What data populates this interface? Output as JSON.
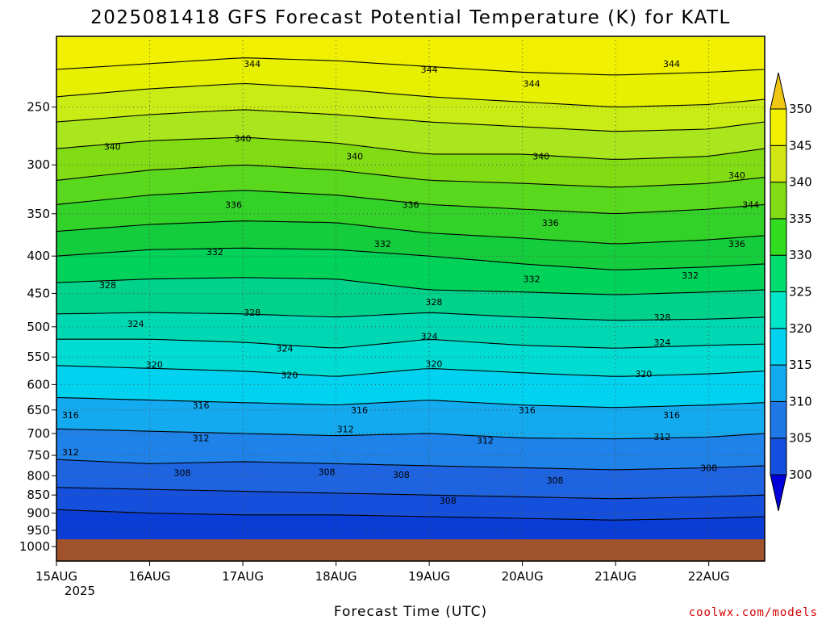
{
  "chart_data": {
    "type": "heatmap",
    "title": "2025081418 GFS Forecast Potential Temperature (K) for KATL",
    "xlabel": "Forecast Time (UTC)",
    "ylabel": "",
    "credit": "coolwx.com/models",
    "x_ticks": [
      "15AUG",
      "16AUG",
      "17AUG",
      "18AUG",
      "19AUG",
      "20AUG",
      "21AUG",
      "22AUG"
    ],
    "x_tick_sublabel": "2025",
    "x_range": [
      0,
      7.6
    ],
    "y_ticks": [
      250,
      300,
      350,
      400,
      450,
      500,
      550,
      600,
      650,
      700,
      750,
      800,
      850,
      900,
      950,
      1000
    ],
    "y_range": [
      200,
      1000
    ],
    "y_scale": "log",
    "y_inverted": true,
    "grid": "dotted",
    "colorbar": {
      "levels": [
        300,
        305,
        310,
        315,
        320,
        325,
        330,
        335,
        340,
        345,
        350
      ],
      "colors": [
        "#0000d8",
        "#1450e0",
        "#1e78e6",
        "#14aaf0",
        "#00d2f0",
        "#00e6c8",
        "#00dc6e",
        "#32dc1e",
        "#82dc14",
        "#d2e614",
        "#f0f000",
        "#f0c814"
      ],
      "placement": "right"
    },
    "series": [
      {
        "values": [
          [
            0.0,
            222
          ],
          [
            1.0,
            218
          ],
          [
            2.0,
            214
          ],
          [
            3.0,
            216
          ],
          [
            4.0,
            220
          ],
          [
            5.0,
            224
          ],
          [
            6.0,
            226
          ],
          [
            7.0,
            224
          ],
          [
            7.6,
            222
          ]
        ]
      },
      {
        "values": [
          [
            0.0,
            242
          ],
          [
            1.0,
            236
          ],
          [
            2.0,
            232
          ],
          [
            3.0,
            236
          ],
          [
            4.0,
            242
          ],
          [
            5.0,
            246
          ],
          [
            6.0,
            250
          ],
          [
            7.0,
            248
          ],
          [
            7.6,
            244
          ]
        ]
      },
      {
        "values": [
          [
            0.0,
            262
          ],
          [
            1.0,
            256
          ],
          [
            2.0,
            252
          ],
          [
            3.0,
            256
          ],
          [
            4.0,
            262
          ],
          [
            5.0,
            266
          ],
          [
            6.0,
            270
          ],
          [
            7.0,
            268
          ],
          [
            7.6,
            262
          ]
        ]
      },
      {
        "values": [
          [
            0.0,
            285
          ],
          [
            1.0,
            278
          ],
          [
            2.0,
            275
          ],
          [
            3.0,
            280
          ],
          [
            4.0,
            290
          ],
          [
            5.0,
            290
          ],
          [
            6.0,
            295
          ],
          [
            7.0,
            292
          ],
          [
            7.6,
            285
          ]
        ]
      },
      {
        "values": [
          [
            0.0,
            315
          ],
          [
            1.0,
            305
          ],
          [
            2.0,
            300
          ],
          [
            3.0,
            305
          ],
          [
            4.0,
            315
          ],
          [
            5.0,
            318
          ],
          [
            6.0,
            322
          ],
          [
            7.0,
            318
          ],
          [
            7.6,
            312
          ]
        ]
      },
      {
        "values": [
          [
            0.0,
            340
          ],
          [
            1.0,
            330
          ],
          [
            2.0,
            325
          ],
          [
            3.0,
            330
          ],
          [
            4.0,
            340
          ],
          [
            5.0,
            345
          ],
          [
            6.0,
            350
          ],
          [
            7.0,
            345
          ],
          [
            7.6,
            340
          ]
        ]
      },
      {
        "values": [
          [
            0.0,
            370
          ],
          [
            1.0,
            362
          ],
          [
            2.0,
            358
          ],
          [
            3.0,
            360
          ],
          [
            4.0,
            372
          ],
          [
            5.0,
            378
          ],
          [
            6.0,
            385
          ],
          [
            7.0,
            380
          ],
          [
            7.6,
            375
          ]
        ]
      },
      {
        "values": [
          [
            0.0,
            400
          ],
          [
            1.0,
            392
          ],
          [
            2.0,
            390
          ],
          [
            3.0,
            392
          ],
          [
            4.0,
            400
          ],
          [
            5.0,
            410
          ],
          [
            6.0,
            418
          ],
          [
            7.0,
            414
          ],
          [
            7.6,
            410
          ]
        ]
      },
      {
        "values": [
          [
            0.0,
            435
          ],
          [
            1.0,
            430
          ],
          [
            2.0,
            428
          ],
          [
            3.0,
            430
          ],
          [
            4.0,
            445
          ],
          [
            5.0,
            448
          ],
          [
            6.0,
            452
          ],
          [
            7.0,
            448
          ],
          [
            7.6,
            445
          ]
        ]
      },
      {
        "values": [
          [
            0.0,
            480
          ],
          [
            1.0,
            478
          ],
          [
            2.0,
            480
          ],
          [
            3.0,
            485
          ],
          [
            4.0,
            478
          ],
          [
            5.0,
            485
          ],
          [
            6.0,
            490
          ],
          [
            7.0,
            488
          ],
          [
            7.6,
            485
          ]
        ]
      },
      {
        "values": [
          [
            0.0,
            520
          ],
          [
            1.0,
            520
          ],
          [
            2.0,
            525
          ],
          [
            3.0,
            535
          ],
          [
            4.0,
            520
          ],
          [
            5.0,
            530
          ],
          [
            6.0,
            535
          ],
          [
            7.0,
            530
          ],
          [
            7.6,
            528
          ]
        ]
      },
      {
        "values": [
          [
            0.0,
            565
          ],
          [
            1.0,
            570
          ],
          [
            2.0,
            575
          ],
          [
            3.0,
            585
          ],
          [
            4.0,
            570
          ],
          [
            5.0,
            578
          ],
          [
            6.0,
            585
          ],
          [
            7.0,
            580
          ],
          [
            7.6,
            575
          ]
        ]
      },
      {
        "values": [
          [
            0.0,
            625
          ],
          [
            1.0,
            630
          ],
          [
            2.0,
            635
          ],
          [
            3.0,
            640
          ],
          [
            4.0,
            630
          ],
          [
            5.0,
            640
          ],
          [
            6.0,
            645
          ],
          [
            7.0,
            640
          ],
          [
            7.6,
            635
          ]
        ]
      },
      {
        "values": [
          [
            0.0,
            690
          ],
          [
            1.0,
            695
          ],
          [
            2.0,
            700
          ],
          [
            3.0,
            705
          ],
          [
            4.0,
            700
          ],
          [
            5.0,
            710
          ],
          [
            6.0,
            712
          ],
          [
            7.0,
            708
          ],
          [
            7.6,
            700
          ]
        ]
      },
      {
        "values": [
          [
            0.0,
            760
          ],
          [
            1.0,
            770
          ],
          [
            2.0,
            765
          ],
          [
            3.0,
            770
          ],
          [
            4.0,
            775
          ],
          [
            5.0,
            780
          ],
          [
            6.0,
            785
          ],
          [
            7.0,
            780
          ],
          [
            7.6,
            775
          ]
        ]
      },
      {
        "values": [
          [
            0.0,
            830
          ],
          [
            1.0,
            835
          ],
          [
            2.0,
            840
          ],
          [
            3.0,
            845
          ],
          [
            4.0,
            850
          ],
          [
            5.0,
            855
          ],
          [
            6.0,
            860
          ],
          [
            7.0,
            855
          ],
          [
            7.6,
            850
          ]
        ]
      },
      {
        "values": [
          [
            0.0,
            890
          ],
          [
            1.0,
            900
          ],
          [
            2.0,
            905
          ],
          [
            3.0,
            905
          ],
          [
            4.0,
            910
          ],
          [
            5.0,
            915
          ],
          [
            6.0,
            920
          ],
          [
            7.0,
            915
          ],
          [
            7.6,
            910
          ]
        ]
      }
    ],
    "annotations": [
      {
        "text": "344",
        "x": 2.1,
        "p": 218
      },
      {
        "text": "344",
        "x": 4.0,
        "p": 222
      },
      {
        "text": "344",
        "x": 5.1,
        "p": 232
      },
      {
        "text": "344",
        "x": 6.6,
        "p": 218
      },
      {
        "text": "344",
        "x": 7.45,
        "p": 340
      },
      {
        "text": "340",
        "x": 0.6,
        "p": 283
      },
      {
        "text": "340",
        "x": 2.0,
        "p": 276
      },
      {
        "text": "340",
        "x": 3.2,
        "p": 292
      },
      {
        "text": "340",
        "x": 5.2,
        "p": 292
      },
      {
        "text": "340",
        "x": 7.3,
        "p": 310
      },
      {
        "text": "336",
        "x": 1.9,
        "p": 340
      },
      {
        "text": "336",
        "x": 3.8,
        "p": 340
      },
      {
        "text": "336",
        "x": 5.3,
        "p": 360
      },
      {
        "text": "336",
        "x": 7.3,
        "p": 385
      },
      {
        "text": "332",
        "x": 1.7,
        "p": 395
      },
      {
        "text": "332",
        "x": 3.5,
        "p": 385
      },
      {
        "text": "332",
        "x": 5.1,
        "p": 430
      },
      {
        "text": "332",
        "x": 6.8,
        "p": 425
      },
      {
        "text": "328",
        "x": 0.55,
        "p": 438
      },
      {
        "text": "328",
        "x": 2.1,
        "p": 478
      },
      {
        "text": "328",
        "x": 4.05,
        "p": 462
      },
      {
        "text": "328",
        "x": 6.5,
        "p": 485
      },
      {
        "text": "324",
        "x": 0.85,
        "p": 495
      },
      {
        "text": "324",
        "x": 2.45,
        "p": 535
      },
      {
        "text": "324",
        "x": 4.0,
        "p": 515
      },
      {
        "text": "324",
        "x": 6.5,
        "p": 525
      },
      {
        "text": "320",
        "x": 1.05,
        "p": 563
      },
      {
        "text": "320",
        "x": 2.5,
        "p": 582
      },
      {
        "text": "320",
        "x": 4.05,
        "p": 562
      },
      {
        "text": "320",
        "x": 6.3,
        "p": 580
      },
      {
        "text": "316",
        "x": 0.15,
        "p": 660
      },
      {
        "text": "316",
        "x": 1.55,
        "p": 640
      },
      {
        "text": "316",
        "x": 3.25,
        "p": 650
      },
      {
        "text": "316",
        "x": 5.05,
        "p": 650
      },
      {
        "text": "316",
        "x": 6.6,
        "p": 660
      },
      {
        "text": "312",
        "x": 0.15,
        "p": 742
      },
      {
        "text": "312",
        "x": 1.55,
        "p": 710
      },
      {
        "text": "312",
        "x": 3.1,
        "p": 690
      },
      {
        "text": "312",
        "x": 4.6,
        "p": 715
      },
      {
        "text": "312",
        "x": 6.5,
        "p": 707
      },
      {
        "text": "308",
        "x": 1.35,
        "p": 792
      },
      {
        "text": "308",
        "x": 2.9,
        "p": 790
      },
      {
        "text": "308",
        "x": 3.7,
        "p": 797
      },
      {
        "text": "308",
        "x": 4.2,
        "p": 865
      },
      {
        "text": "308",
        "x": 5.35,
        "p": 812
      },
      {
        "text": "308",
        "x": 7.0,
        "p": 780
      }
    ]
  }
}
